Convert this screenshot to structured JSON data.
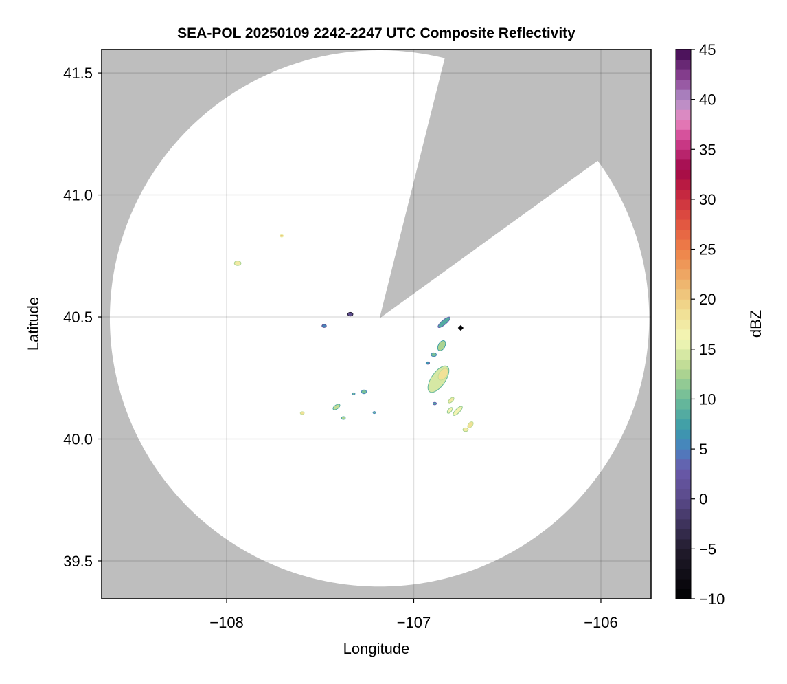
{
  "chart_data": {
    "type": "heatmap",
    "title": "SEA-POL 20250109 2242-2247 UTC Composite Reflectivity",
    "xlabel": "Longitude",
    "ylabel": "Latitude",
    "xlim": [
      -108.668,
      -105.732
    ],
    "ylim": [
      39.345,
      41.596
    ],
    "xticks": [
      -108,
      -107,
      -106
    ],
    "xtick_labels": [
      "−108",
      "−107",
      "−106"
    ],
    "yticks": [
      39.5,
      40.0,
      40.5,
      41.0,
      41.5
    ],
    "ytick_labels": [
      "39.5",
      "40.0",
      "40.5",
      "41.0",
      "41.5"
    ],
    "grid": true,
    "background_color": "#bebebe",
    "radar": {
      "center_lon": -107.183,
      "center_lat": 40.494,
      "range_km": 122,
      "blanked_sector_deg": [
        14,
        54
      ]
    },
    "echoes": [
      {
        "lon": -107.706,
        "lat": 40.832,
        "dbz": 20,
        "size_km": 0.8,
        "shape": "dot"
      },
      {
        "lon": -107.941,
        "lat": 40.72,
        "dbz": 17,
        "size_km": 1.5
      },
      {
        "lon": -107.479,
        "lat": 40.463,
        "dbz": 5,
        "size_km": 1.0
      },
      {
        "lon": -107.339,
        "lat": 40.511,
        "dbz": 0,
        "size_km": 1.2
      },
      {
        "lon": -106.838,
        "lat": 40.478,
        "dbz": 8,
        "size_km": 3.5,
        "angle": -40,
        "aspect": 0.3
      },
      {
        "lon": -106.749,
        "lat": 40.455,
        "dbz": -10,
        "size_km": 1.3,
        "shape": "diamond"
      },
      {
        "lon": -106.851,
        "lat": 40.382,
        "dbz": 12,
        "size_km": 2.5,
        "angle": -60,
        "aspect": 0.6
      },
      {
        "lon": -106.925,
        "lat": 40.311,
        "dbz": 6,
        "size_km": 0.8
      },
      {
        "lon": -106.893,
        "lat": 40.345,
        "dbz": 10,
        "size_km": 1.2
      },
      {
        "lon": -106.868,
        "lat": 40.245,
        "dbz": 14,
        "size_km": 7.0,
        "angle": -55,
        "aspect": 0.45
      },
      {
        "lon": -106.843,
        "lat": 40.265,
        "dbz": 18,
        "size_km": 3.0,
        "angle": -55,
        "aspect": 0.6
      },
      {
        "lon": -106.8,
        "lat": 40.159,
        "dbz": 17,
        "size_km": 1.6,
        "angle": -45,
        "aspect": 0.5
      },
      {
        "lon": -106.807,
        "lat": 40.117,
        "dbz": 16,
        "size_km": 1.6,
        "angle": -50,
        "aspect": 0.5
      },
      {
        "lon": -106.765,
        "lat": 40.115,
        "dbz": 16,
        "size_km": 2.8,
        "angle": -45,
        "aspect": 0.35
      },
      {
        "lon": -106.697,
        "lat": 40.058,
        "dbz": 18,
        "size_km": 1.6,
        "angle": -50,
        "aspect": 0.6
      },
      {
        "lon": -106.723,
        "lat": 40.038,
        "dbz": 17,
        "size_km": 1.2
      },
      {
        "lon": -106.888,
        "lat": 40.145,
        "dbz": 8,
        "size_km": 0.8
      },
      {
        "lon": -107.266,
        "lat": 40.193,
        "dbz": 10,
        "size_km": 1.2
      },
      {
        "lon": -107.321,
        "lat": 40.185,
        "dbz": 10,
        "size_km": 0.6
      },
      {
        "lon": -107.413,
        "lat": 40.131,
        "dbz": 13,
        "size_km": 1.8,
        "angle": -35,
        "aspect": 0.5
      },
      {
        "lon": -107.376,
        "lat": 40.086,
        "dbz": 12,
        "size_km": 0.9
      },
      {
        "lon": -107.211,
        "lat": 40.108,
        "dbz": 10,
        "size_km": 0.6
      },
      {
        "lon": -107.596,
        "lat": 40.106,
        "dbz": 18,
        "size_km": 0.9
      }
    ],
    "colorbar": {
      "label": "dBZ",
      "range": [
        -10,
        45
      ],
      "ticks": [
        -10,
        -5,
        0,
        5,
        10,
        15,
        20,
        25,
        30,
        35,
        40,
        45
      ],
      "tick_labels": [
        "−10",
        "−5",
        "0",
        "5",
        "10",
        "15",
        "20",
        "25",
        "30",
        "35",
        "40",
        "45"
      ],
      "levels": 55,
      "color_anchors": [
        [
          -10,
          "#000000"
        ],
        [
          -5,
          "#221c2e"
        ],
        [
          0,
          "#5a4a8a"
        ],
        [
          3,
          "#6a5aaa"
        ],
        [
          5,
          "#4a80c0"
        ],
        [
          7,
          "#3a9aaa"
        ],
        [
          10,
          "#6cbb98"
        ],
        [
          13,
          "#b8d890"
        ],
        [
          16,
          "#f4f8b8"
        ],
        [
          19,
          "#f0dc90"
        ],
        [
          22,
          "#eeae68"
        ],
        [
          25,
          "#ee8048"
        ],
        [
          28,
          "#e05040"
        ],
        [
          31,
          "#c02040"
        ],
        [
          33,
          "#a00848"
        ],
        [
          36,
          "#d04090"
        ],
        [
          38,
          "#e888c0"
        ],
        [
          40,
          "#b090c8"
        ],
        [
          42,
          "#904898"
        ],
        [
          45,
          "#400850"
        ]
      ]
    }
  }
}
